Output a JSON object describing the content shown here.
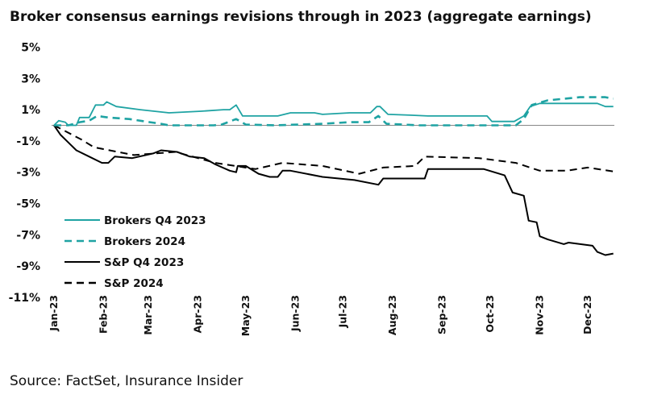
{
  "chart_data": {
    "type": "line",
    "title": "Broker consensus earnings revisions through in 2023 (aggregate earnings)",
    "source": "Source: FactSet, Insurance Insider",
    "xlabel": "",
    "ylabel": "",
    "xlim": [
      "2023-01-01",
      "2023-12-17"
    ],
    "ylim": [
      -11,
      5
    ],
    "y_ticks": [
      "5%",
      "3%",
      "1%",
      "-1%",
      "-3%",
      "-5%",
      "-7%",
      "-9%",
      "-11%"
    ],
    "y_tick_values": [
      5,
      3,
      1,
      -1,
      -3,
      -5,
      -7,
      -9,
      -11
    ],
    "x_ticks": [
      "Jan-23",
      "Feb-23",
      "Mar-23",
      "Apr-23",
      "May-23",
      "Jun-23",
      "Jul-23",
      "Aug-23",
      "Sep-23",
      "Oct-23",
      "Nov-23",
      "Dec-23"
    ],
    "x_tick_dates": [
      "2023-01-01",
      "2023-02-01",
      "2023-03-01",
      "2023-04-01",
      "2023-05-01",
      "2023-06-01",
      "2023-07-01",
      "2023-08-01",
      "2023-09-01",
      "2023-10-01",
      "2023-11-01",
      "2023-12-01"
    ],
    "grid": false,
    "zero_line": true,
    "legend_position": "bottom-left inside",
    "series": [
      {
        "name": "Brokers Q4 2023",
        "color": "#1fa3a3",
        "dash": "solid",
        "points": [
          [
            "2023-01-01",
            0
          ],
          [
            "2023-01-04",
            0.3
          ],
          [
            "2023-01-08",
            0.2
          ],
          [
            "2023-01-10",
            0
          ],
          [
            "2023-01-15",
            0
          ],
          [
            "2023-01-17",
            0.5
          ],
          [
            "2023-01-23",
            0.5
          ],
          [
            "2023-01-27",
            1.3
          ],
          [
            "2023-02-01",
            1.3
          ],
          [
            "2023-02-03",
            1.5
          ],
          [
            "2023-02-09",
            1.2
          ],
          [
            "2023-02-24",
            1.0
          ],
          [
            "2023-03-14",
            0.8
          ],
          [
            "2023-04-03",
            0.9
          ],
          [
            "2023-04-17",
            1.0
          ],
          [
            "2023-04-21",
            1.0
          ],
          [
            "2023-04-25",
            1.3
          ],
          [
            "2023-04-29",
            0.6
          ],
          [
            "2023-05-21",
            0.6
          ],
          [
            "2023-05-29",
            0.8
          ],
          [
            "2023-06-13",
            0.8
          ],
          [
            "2023-06-18",
            0.7
          ],
          [
            "2023-07-05",
            0.8
          ],
          [
            "2023-07-18",
            0.8
          ],
          [
            "2023-07-22",
            1.2
          ],
          [
            "2023-07-24",
            1.2
          ],
          [
            "2023-07-29",
            0.7
          ],
          [
            "2023-08-12",
            0.65
          ],
          [
            "2023-08-23",
            0.6
          ],
          [
            "2023-09-17",
            0.6
          ],
          [
            "2023-09-29",
            0.6
          ],
          [
            "2023-10-02",
            0.25
          ],
          [
            "2023-10-16",
            0.25
          ],
          [
            "2023-10-22",
            0.6
          ],
          [
            "2023-10-26",
            1.2
          ],
          [
            "2023-11-01",
            1.4
          ],
          [
            "2023-12-07",
            1.4
          ],
          [
            "2023-12-12",
            1.2
          ],
          [
            "2023-12-17",
            1.2
          ]
        ]
      },
      {
        "name": "Brokers 2024",
        "color": "#1fa3a3",
        "dash": "dashed",
        "points": [
          [
            "2023-01-01",
            0
          ],
          [
            "2023-01-10",
            0
          ],
          [
            "2023-01-17",
            0.2
          ],
          [
            "2023-01-23",
            0.3
          ],
          [
            "2023-01-28",
            0.6
          ],
          [
            "2023-02-04",
            0.5
          ],
          [
            "2023-02-17",
            0.4
          ],
          [
            "2023-03-02",
            0.2
          ],
          [
            "2023-03-09",
            0.1
          ],
          [
            "2023-03-14",
            0
          ],
          [
            "2023-04-11",
            0
          ],
          [
            "2023-04-16",
            0.05
          ],
          [
            "2023-04-25",
            0.4
          ],
          [
            "2023-05-01",
            0.05
          ],
          [
            "2023-05-19",
            0
          ],
          [
            "2023-06-18",
            0.1
          ],
          [
            "2023-07-05",
            0.2
          ],
          [
            "2023-07-17",
            0.2
          ],
          [
            "2023-07-23",
            0.6
          ],
          [
            "2023-07-28",
            0.1
          ],
          [
            "2023-08-18",
            0
          ],
          [
            "2023-10-17",
            0
          ],
          [
            "2023-10-22",
            0.4
          ],
          [
            "2023-10-27",
            1.3
          ],
          [
            "2023-11-06",
            1.6
          ],
          [
            "2023-11-26",
            1.8
          ],
          [
            "2023-12-12",
            1.8
          ],
          [
            "2023-12-17",
            1.7
          ]
        ]
      },
      {
        "name": "S&P Q4 2023",
        "color": "#000000",
        "dash": "solid",
        "points": [
          [
            "2023-01-01",
            0
          ],
          [
            "2023-01-05",
            -0.6
          ],
          [
            "2023-01-10",
            -1.1
          ],
          [
            "2023-01-15",
            -1.6
          ],
          [
            "2023-01-23",
            -2.0
          ],
          [
            "2023-01-31",
            -2.4
          ],
          [
            "2023-02-04",
            -2.4
          ],
          [
            "2023-02-08",
            -2.0
          ],
          [
            "2023-02-19",
            -2.1
          ],
          [
            "2023-03-04",
            -1.8
          ],
          [
            "2023-03-09",
            -1.6
          ],
          [
            "2023-03-19",
            -1.7
          ],
          [
            "2023-03-27",
            -2.0
          ],
          [
            "2023-04-05",
            -2.1
          ],
          [
            "2023-04-12",
            -2.5
          ],
          [
            "2023-04-21",
            -2.9
          ],
          [
            "2023-04-25",
            -3.0
          ],
          [
            "2023-04-26",
            -2.6
          ],
          [
            "2023-05-01",
            -2.6
          ],
          [
            "2023-05-09",
            -3.1
          ],
          [
            "2023-05-16",
            -3.3
          ],
          [
            "2023-05-21",
            -3.3
          ],
          [
            "2023-05-24",
            -2.9
          ],
          [
            "2023-05-29",
            -2.9
          ],
          [
            "2023-06-18",
            -3.3
          ],
          [
            "2023-07-08",
            -3.5
          ],
          [
            "2023-07-23",
            -3.8
          ],
          [
            "2023-07-26",
            -3.4
          ],
          [
            "2023-08-05",
            -3.4
          ],
          [
            "2023-08-21",
            -3.4
          ],
          [
            "2023-08-23",
            -2.8
          ],
          [
            "2023-09-27",
            -2.8
          ],
          [
            "2023-10-10",
            -3.2
          ],
          [
            "2023-10-15",
            -4.3
          ],
          [
            "2023-10-22",
            -4.5
          ],
          [
            "2023-10-25",
            -6.1
          ],
          [
            "2023-10-30",
            -6.2
          ],
          [
            "2023-11-01",
            -7.1
          ],
          [
            "2023-11-06",
            -7.3
          ],
          [
            "2023-11-16",
            -7.6
          ],
          [
            "2023-11-19",
            -7.5
          ],
          [
            "2023-12-04",
            -7.7
          ],
          [
            "2023-12-07",
            -8.1
          ],
          [
            "2023-12-12",
            -8.3
          ],
          [
            "2023-12-17",
            -8.2
          ]
        ]
      },
      {
        "name": "S&P 2024",
        "color": "#000000",
        "dash": "dashed",
        "points": [
          [
            "2023-01-01",
            0
          ],
          [
            "2023-01-18",
            -0.9
          ],
          [
            "2023-01-26",
            -1.4
          ],
          [
            "2023-02-20",
            -1.9
          ],
          [
            "2023-03-18",
            -1.7
          ],
          [
            "2023-04-12",
            -2.4
          ],
          [
            "2023-05-07",
            -2.8
          ],
          [
            "2023-05-24",
            -2.4
          ],
          [
            "2023-06-18",
            -2.6
          ],
          [
            "2023-07-11",
            -3.1
          ],
          [
            "2023-07-26",
            -2.7
          ],
          [
            "2023-08-15",
            -2.6
          ],
          [
            "2023-08-21",
            -2.0
          ],
          [
            "2023-09-24",
            -2.1
          ],
          [
            "2023-10-17",
            -2.4
          ],
          [
            "2023-11-01",
            -2.9
          ],
          [
            "2023-11-18",
            -2.9
          ],
          [
            "2023-12-01",
            -2.7
          ],
          [
            "2023-12-17",
            -2.95
          ]
        ]
      }
    ]
  }
}
